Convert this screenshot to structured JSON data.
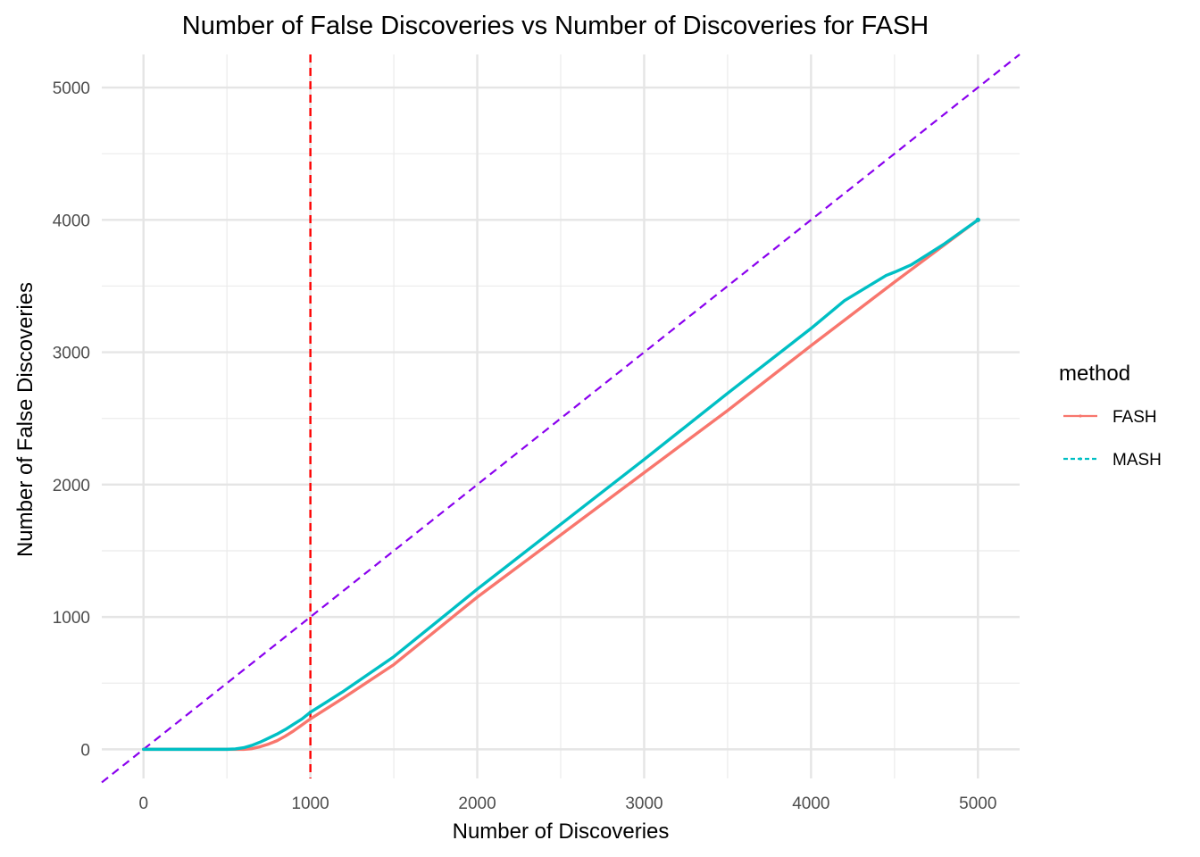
{
  "chart_data": {
    "type": "line",
    "title": "Number of False Discoveries vs Number of Discoveries for FASH",
    "xlabel": "Number of Discoveries",
    "ylabel": "Number of False Discoveries",
    "xlim": [
      -250,
      5250
    ],
    "ylim": [
      -220,
      5250
    ],
    "x_ticks": [
      0,
      1000,
      2000,
      3000,
      4000,
      5000
    ],
    "x_tick_labels": [
      "0",
      "1000",
      "2000",
      "3000",
      "4000",
      "5000"
    ],
    "y_ticks": [
      0,
      1000,
      2000,
      3000,
      4000,
      5000
    ],
    "y_tick_labels": [
      "0",
      "1000",
      "2000",
      "3000",
      "4000",
      "5000"
    ],
    "grid": true,
    "legend": {
      "title": "method",
      "position": "right"
    },
    "series": [
      {
        "name": "FASH",
        "color": "#F8766D",
        "style": "solid",
        "x": [
          0,
          500,
          600,
          650,
          700,
          750,
          800,
          850,
          900,
          950,
          1000,
          1100,
          1200,
          1500,
          2000,
          2500,
          3000,
          3500,
          4000,
          4500,
          5000
        ],
        "y": [
          0,
          0,
          0,
          5,
          20,
          40,
          65,
          100,
          140,
          185,
          230,
          310,
          390,
          640,
          1150,
          1620,
          2090,
          2560,
          3050,
          3530,
          4000
        ]
      },
      {
        "name": "MASH",
        "color": "#00BFC4",
        "style": "dashed",
        "x": [
          0,
          500,
          550,
          600,
          650,
          700,
          750,
          800,
          850,
          900,
          950,
          1000,
          1100,
          1200,
          1500,
          2000,
          2500,
          3000,
          3500,
          4000,
          4200,
          4450,
          4500,
          4600,
          4700,
          4800,
          5000
        ],
        "y": [
          0,
          0,
          3,
          12,
          30,
          55,
          85,
          115,
          150,
          190,
          230,
          280,
          360,
          440,
          700,
          1210,
          1700,
          2190,
          2690,
          3180,
          3390,
          3580,
          3605,
          3660,
          3740,
          3820,
          4000
        ]
      }
    ],
    "reference_lines": [
      {
        "kind": "vertical",
        "x": 1000,
        "color": "#FF0000",
        "style": "dashed"
      },
      {
        "kind": "diagonal",
        "slope": 1,
        "intercept": 0,
        "color": "#8A00EE",
        "style": "dashed"
      }
    ]
  }
}
